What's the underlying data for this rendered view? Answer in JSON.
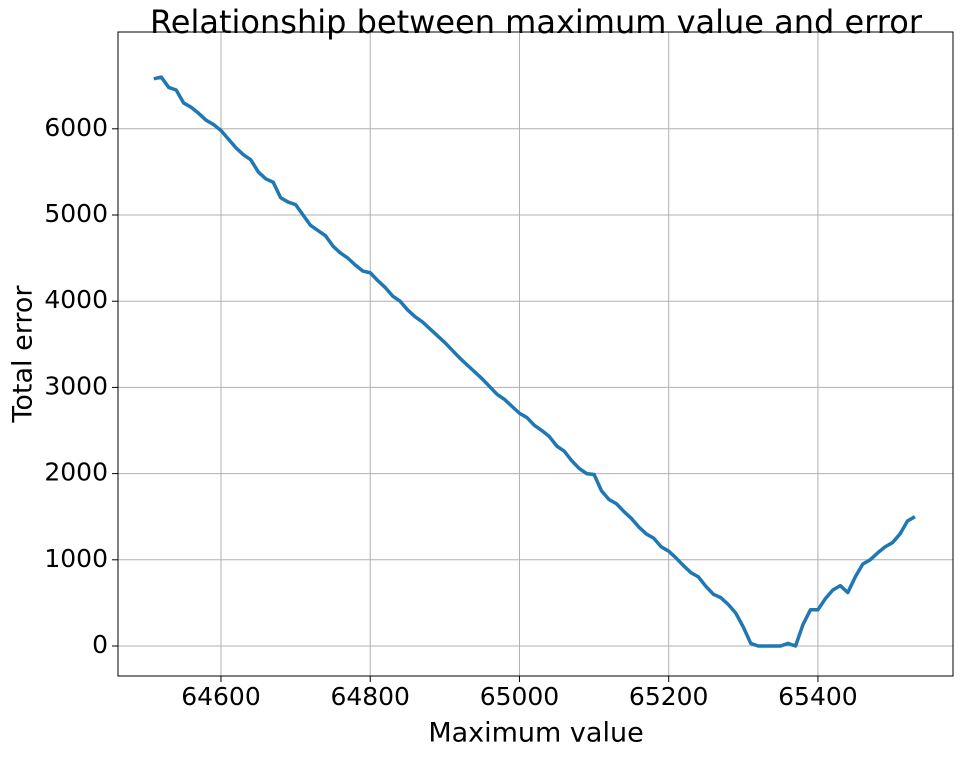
{
  "chart_data": {
    "type": "line",
    "title": "Relationship between maximum value and error",
    "xlabel": "Maximum value",
    "ylabel": "Total error",
    "x": [
      64510,
      64520,
      64530,
      64540,
      64550,
      64560,
      64570,
      64580,
      64590,
      64600,
      64610,
      64620,
      64630,
      64640,
      64650,
      64660,
      64670,
      64680,
      64690,
      64700,
      64710,
      64720,
      64730,
      64740,
      64750,
      64760,
      64770,
      64780,
      64790,
      64800,
      64810,
      64820,
      64830,
      64840,
      64850,
      64860,
      64870,
      64880,
      64890,
      64900,
      64910,
      64920,
      64930,
      64940,
      64950,
      64960,
      64970,
      64980,
      64990,
      65000,
      65010,
      65020,
      65030,
      65040,
      65050,
      65060,
      65070,
      65080,
      65090,
      65100,
      65110,
      65120,
      65130,
      65140,
      65150,
      65160,
      65170,
      65180,
      65190,
      65200,
      65210,
      65220,
      65230,
      65240,
      65250,
      65260,
      65270,
      65280,
      65290,
      65300,
      65310,
      65320,
      65330,
      65340,
      65350,
      65360,
      65370,
      65380,
      65390,
      65400,
      65410,
      65420,
      65430,
      65440,
      65450,
      65460,
      65470,
      65480,
      65490,
      65500,
      65510,
      65520,
      65530
    ],
    "series": [
      {
        "name": "Total error",
        "color": "#1f77b4",
        "values": [
          6580,
          6600,
          6480,
          6450,
          6300,
          6250,
          6180,
          6100,
          6050,
          5980,
          5880,
          5780,
          5700,
          5640,
          5500,
          5420,
          5380,
          5200,
          5150,
          5120,
          5000,
          4880,
          4820,
          4760,
          4640,
          4560,
          4500,
          4420,
          4350,
          4330,
          4240,
          4160,
          4060,
          4000,
          3900,
          3820,
          3760,
          3680,
          3600,
          3520,
          3430,
          3340,
          3260,
          3180,
          3100,
          3010,
          2920,
          2860,
          2780,
          2700,
          2650,
          2560,
          2500,
          2430,
          2320,
          2260,
          2150,
          2060,
          2000,
          1990,
          1800,
          1700,
          1650,
          1560,
          1480,
          1380,
          1300,
          1250,
          1150,
          1100,
          1020,
          930,
          850,
          800,
          690,
          600,
          560,
          480,
          380,
          220,
          30,
          0,
          0,
          0,
          0,
          30,
          0,
          250,
          420,
          420,
          550,
          650,
          700,
          620,
          800,
          950,
          1000,
          1080,
          1150,
          1200,
          1300,
          1450,
          1500
        ]
      }
    ],
    "xlim": [
      64462,
      65581
    ],
    "ylim": [
      -348,
      7123
    ],
    "xticks": [
      64600,
      64800,
      65000,
      65200,
      65400
    ],
    "yticks": [
      0,
      1000,
      2000,
      3000,
      4000,
      5000,
      6000
    ],
    "grid": true
  }
}
